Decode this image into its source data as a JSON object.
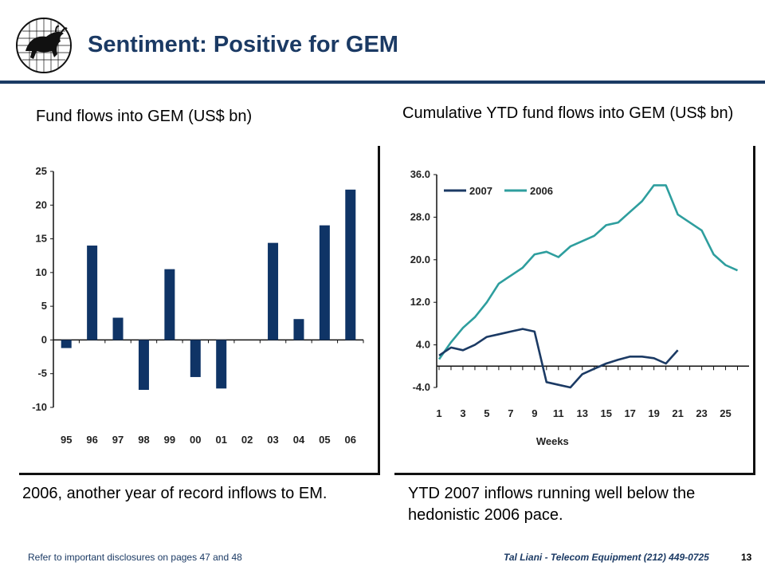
{
  "header": {
    "title": "Sentiment: Positive for GEM"
  },
  "left_panel": {
    "caption": "Fund flows into GEM (US$ bn)",
    "note": "2006, another year of record inflows to EM."
  },
  "right_panel": {
    "caption": "Cumulative YTD fund flows into GEM (US$ bn)",
    "note": "YTD 2007 inflows running well below the hedonistic 2006 pace."
  },
  "footer": {
    "disclosure": "Refer to important disclosures on pages 47 and 48",
    "analyst": "Tal Liani - Telecom Equipment (212) 449-0725",
    "page_number": "13"
  },
  "colors": {
    "brand": "#1b3a64",
    "bar": "#0f3466",
    "series_2007": "#1b3a64",
    "series_2006": "#2e9e9e"
  },
  "chart_data": [
    {
      "type": "bar",
      "categories": [
        "95",
        "96",
        "97",
        "98",
        "99",
        "00",
        "01",
        "02",
        "03",
        "04",
        "05",
        "06"
      ],
      "values": [
        -1.2,
        14,
        3.3,
        -7.4,
        10.5,
        -5.5,
        -7.2,
        0,
        14.4,
        3.1,
        17,
        22.3
      ],
      "ylim": [
        -10,
        25
      ],
      "yticks": [
        25,
        20,
        15,
        10,
        5,
        0,
        -5,
        -10
      ],
      "xlabel": "",
      "ylabel": "",
      "legend": "none",
      "grid": false
    },
    {
      "type": "line",
      "xlabel": "Weeks",
      "ylabel": "",
      "ylim": [
        -4,
        36
      ],
      "yticks": [
        "36.0",
        "28.0",
        "20.0",
        "12.0",
        "4.0",
        "-4.0"
      ],
      "ytick_values": [
        36,
        28,
        20,
        12,
        4,
        -4
      ],
      "xticks": [
        1,
        3,
        5,
        7,
        9,
        11,
        13,
        15,
        17,
        19,
        21,
        23,
        25
      ],
      "xlim": [
        1,
        26.5
      ],
      "baseline": 0,
      "legend": "top-left",
      "grid": false,
      "series": [
        {
          "name": "2007",
          "x": [
            1,
            2,
            3,
            4,
            5,
            6,
            7,
            8,
            9,
            10,
            11,
            12,
            13,
            14,
            15,
            16,
            17,
            18,
            19,
            20,
            21
          ],
          "y": [
            2,
            3.5,
            3,
            4,
            5.5,
            6,
            6.5,
            7,
            6.5,
            -3,
            -3.5,
            -4,
            -1.5,
            -0.5,
            0.5,
            1.2,
            1.8,
            1.8,
            1.5,
            0.5,
            3
          ]
        },
        {
          "name": "2006",
          "x": [
            1,
            2,
            3,
            4,
            5,
            6,
            7,
            8,
            9,
            10,
            11,
            12,
            13,
            14,
            15,
            16,
            17,
            18,
            19,
            20,
            21,
            22,
            23,
            24,
            25,
            26
          ],
          "y": [
            1.3,
            4.5,
            7.2,
            9.2,
            12,
            15.5,
            17,
            18.5,
            21,
            21.5,
            20.5,
            22.5,
            23.5,
            24.5,
            26.5,
            27,
            29,
            31,
            34,
            34,
            28.5,
            27,
            25.5,
            21,
            19,
            18
          ]
        }
      ]
    }
  ]
}
